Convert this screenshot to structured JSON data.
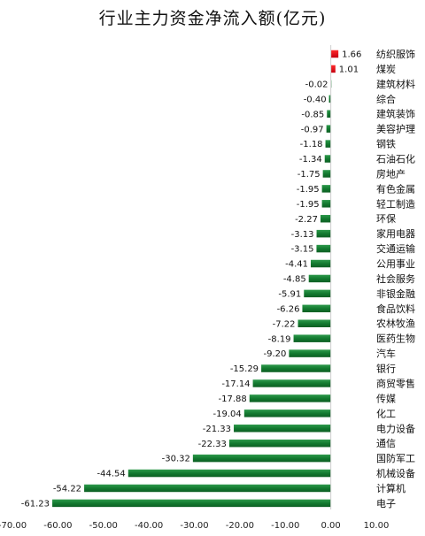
{
  "chart_data": {
    "type": "bar",
    "orientation": "horizontal",
    "title": "行业主力资金净流入额(亿元)",
    "xlabel": "",
    "ylabel": "",
    "xlim": [
      -70,
      10
    ],
    "xticks": [
      -70,
      -60,
      -50,
      -40,
      -30,
      -20,
      -10,
      0,
      10
    ],
    "xtick_labels": [
      "-70.00",
      "-60.00",
      "-50.00",
      "-40.00",
      "-30.00",
      "-20.00",
      "-10.00",
      "0.00",
      "10.00"
    ],
    "grid": false,
    "legend": "none",
    "categories": [
      "纺织服饰",
      "煤炭",
      "建筑材料",
      "综合",
      "建筑装饰",
      "美容护理",
      "钢铁",
      "石油石化",
      "房地产",
      "有色金属",
      "轻工制造",
      "环保",
      "家用电器",
      "交通运输",
      "公用事业",
      "社会服务",
      "非银金融",
      "食品饮料",
      "农林牧渔",
      "医药生物",
      "汽车",
      "银行",
      "商贸零售",
      "传媒",
      "化工",
      "电力设备",
      "通信",
      "国防军工",
      "机械设备",
      "计算机",
      "电子"
    ],
    "values": [
      1.66,
      1.01,
      -0.02,
      -0.4,
      -0.85,
      -0.97,
      -1.18,
      -1.34,
      -1.75,
      -1.95,
      -1.95,
      -2.27,
      -3.13,
      -3.15,
      -4.41,
      -4.85,
      -5.91,
      -6.26,
      -7.22,
      -8.19,
      -9.2,
      -15.29,
      -17.14,
      -17.88,
      -19.04,
      -21.33,
      -22.33,
      -30.32,
      -44.54,
      -54.22,
      -61.23
    ],
    "value_labels": [
      "1.66",
      "1.01",
      "-0.02",
      "-0.40",
      "-0.85",
      "-0.97",
      "-1.18",
      "-1.34",
      "-1.75",
      "-1.95",
      "-1.95",
      "-2.27",
      "-3.13",
      "-3.15",
      "-4.41",
      "-4.85",
      "-5.91",
      "-6.26",
      "-7.22",
      "-8.19",
      "-9.20",
      "-15.29",
      "-17.14",
      "-17.88",
      "-19.04",
      "-21.33",
      "-22.33",
      "-30.32",
      "-44.54",
      "-54.22",
      "-61.23"
    ],
    "colors": {
      "positive": "#e60012",
      "negative": "#1a7f37"
    }
  }
}
